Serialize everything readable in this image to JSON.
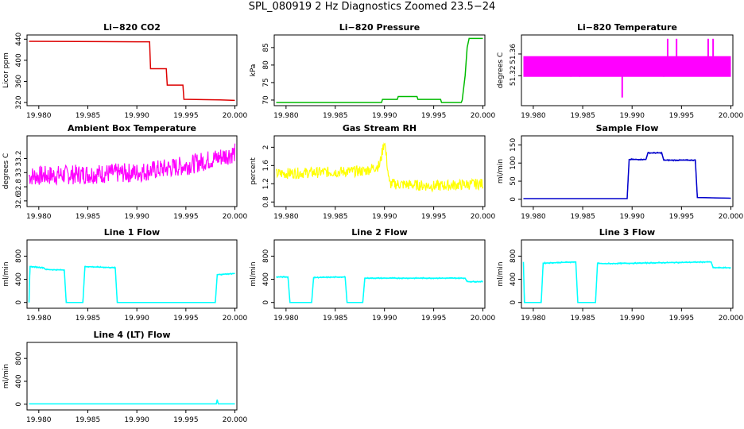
{
  "title": "SPL_080919  2 Hz Diagnostics Zoomed 23.5−24",
  "x_ticks": [
    "19.980",
    "19.985",
    "19.990",
    "19.995",
    "20.000"
  ],
  "chart_data": [
    {
      "type": "line",
      "title": "Li−820 CO2",
      "ylabel": "Licor ppm",
      "color": "#dd0000",
      "xlim": [
        19.9788,
        20.0002
      ],
      "ylim": [
        314,
        448
      ],
      "yticks": [
        320,
        360,
        400,
        440
      ],
      "x": [
        19.979,
        19.99,
        19.9913,
        19.9914,
        19.993,
        19.9931,
        19.9947,
        19.9948,
        19.9985,
        20.0
      ],
      "y": [
        436,
        435,
        435,
        384,
        384,
        353,
        353,
        326,
        325,
        324
      ]
    },
    {
      "type": "line",
      "title": "Li−820 Pressure",
      "ylabel": "kPa",
      "color": "#00bb00",
      "xlim": [
        19.9788,
        20.0002
      ],
      "ylim": [
        68.4,
        88.6
      ],
      "yticks": [
        70,
        75,
        80,
        85
      ],
      "x": [
        19.979,
        19.9897,
        19.9898,
        19.9913,
        19.9914,
        19.9933,
        19.9934,
        19.9957,
        19.9958,
        19.9978,
        19.9979,
        19.9982,
        19.9984,
        19.9986,
        20.0
      ],
      "y": [
        69.3,
        69.3,
        70.2,
        70.2,
        71.0,
        71.0,
        70.2,
        70.2,
        69.3,
        69.3,
        70.0,
        77.0,
        85.0,
        87.6,
        87.6
      ]
    },
    {
      "type": "line",
      "title": "Li−820 Temperature",
      "ylabel": "degrees C",
      "color": "#ff00ff",
      "xlim": [
        19.9788,
        20.0002
      ],
      "ylim": [
        51.265,
        51.395
      ],
      "yticks": [
        51.32,
        51.36
      ],
      "band": [
        51.318,
        51.356
      ],
      "x": [
        19.979,
        19.9838,
        19.9847,
        19.989,
        19.9932,
        19.9936,
        19.9945,
        19.9977,
        19.9982,
        20.0
      ],
      "y": [
        51.337,
        51.33,
        51.332,
        51.28,
        51.345,
        51.388,
        51.388,
        51.388,
        51.388,
        51.337
      ]
    },
    {
      "type": "line",
      "title": "Ambient Box Temperature",
      "ylabel": "degrees C",
      "color": "#ff00ff",
      "xlim": [
        19.9788,
        20.0002
      ],
      "ylim": [
        32.52,
        33.52
      ],
      "yticks": [
        32.6,
        32.8,
        33.0,
        33.2
      ],
      "trend_x": [
        19.979,
        19.985,
        19.99,
        19.995,
        19.998,
        20.0
      ],
      "trend_y": [
        32.95,
        32.98,
        33.0,
        33.1,
        33.2,
        33.28
      ],
      "spread": 0.14
    },
    {
      "type": "line",
      "title": "Gas Stream RH",
      "ylabel": "percent",
      "color": "#ffff00",
      "xlim": [
        19.9788,
        20.0002
      ],
      "ylim": [
        0.7,
        2.25
      ],
      "yticks": [
        0.8,
        1.2,
        1.6,
        2.0
      ],
      "trend_x": [
        19.979,
        19.988,
        19.9895,
        19.99,
        19.9905,
        19.995,
        20.0
      ],
      "trend_y": [
        1.42,
        1.48,
        1.6,
        2.15,
        1.2,
        1.15,
        1.2
      ],
      "spread": 0.12
    },
    {
      "type": "line",
      "title": "Sample Flow",
      "ylabel": "ml/min",
      "color": "#0000cc",
      "xlim": [
        19.9788,
        20.0002
      ],
      "ylim": [
        -20,
        175
      ],
      "yticks": [
        0,
        50,
        100,
        150
      ],
      "x": [
        19.979,
        19.9895,
        19.9897,
        19.9914,
        19.9916,
        19.993,
        19.9932,
        19.9964,
        19.9966,
        20.0
      ],
      "y": [
        2,
        2,
        110,
        110,
        128,
        128,
        108,
        108,
        5,
        3
      ]
    },
    {
      "type": "line",
      "title": "Line 1 Flow",
      "ylabel": "ml/min",
      "color": "#00ffff",
      "xlim": [
        19.9788,
        20.0002
      ],
      "ylim": [
        -100,
        1080
      ],
      "yticks": [
        0,
        400,
        800
      ],
      "x": [
        19.979,
        19.9791,
        19.9805,
        19.9807,
        19.9826,
        19.9828,
        19.9845,
        19.9847,
        19.9878,
        19.988,
        19.998,
        19.9982,
        20.0
      ],
      "y": [
        0,
        620,
        600,
        570,
        560,
        0,
        0,
        620,
        600,
        0,
        0,
        480,
        500
      ]
    },
    {
      "type": "line",
      "title": "Line 2 Flow",
      "ylabel": "ml/min",
      "color": "#00ffff",
      "xlim": [
        19.9788,
        20.0002
      ],
      "ylim": [
        -100,
        1080
      ],
      "yticks": [
        0,
        400,
        800
      ],
      "x": [
        19.979,
        19.9802,
        19.9804,
        19.9826,
        19.9828,
        19.986,
        19.9862,
        19.9878,
        19.988,
        19.9982,
        19.9984,
        20.0
      ],
      "y": [
        440,
        440,
        0,
        0,
        430,
        440,
        0,
        0,
        420,
        420,
        360,
        360
      ]
    },
    {
      "type": "line",
      "title": "Line 3 Flow",
      "ylabel": "ml/min",
      "color": "#00ffff",
      "xlim": [
        19.9788,
        20.0002
      ],
      "ylim": [
        -100,
        1080
      ],
      "yticks": [
        0,
        400,
        800
      ],
      "x": [
        19.979,
        19.9791,
        19.9793,
        19.9808,
        19.981,
        19.9843,
        19.9845,
        19.9863,
        19.9865,
        19.987,
        19.998,
        19.9982,
        20.0
      ],
      "y": [
        700,
        0,
        0,
        0,
        680,
        700,
        0,
        0,
        680,
        670,
        700,
        600,
        600
      ]
    },
    {
      "type": "line",
      "title": "Line 4 (LT) Flow",
      "ylabel": "ml/min",
      "color": "#00ffff",
      "xlim": [
        19.9788,
        20.0002
      ],
      "ylim": [
        -100,
        1080
      ],
      "yticks": [
        0,
        400,
        800
      ],
      "x": [
        19.979,
        19.9981,
        19.9982,
        19.9983,
        20.0
      ],
      "y": [
        5,
        5,
        80,
        5,
        5
      ]
    }
  ]
}
